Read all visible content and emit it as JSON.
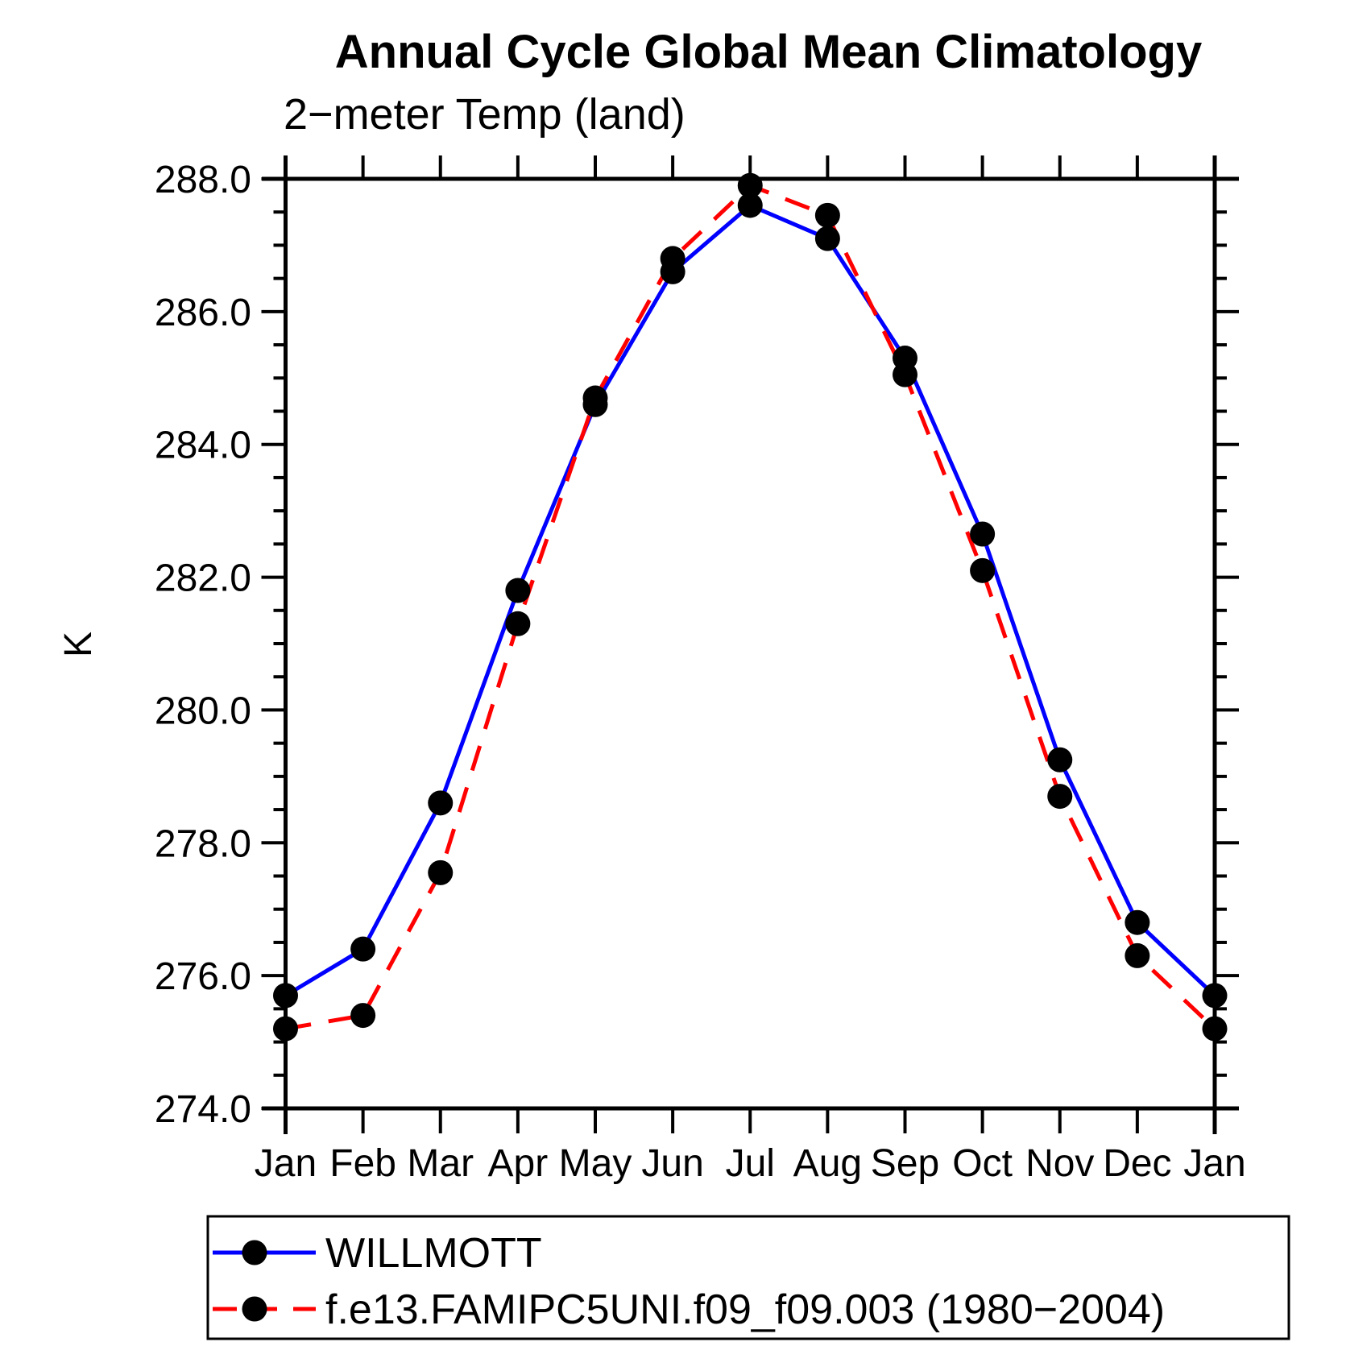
{
  "background": "#ffffff",
  "axis_color": "#000000",
  "marker_color": "#000000",
  "chart_data": {
    "type": "line",
    "title": "Annual Cycle Global Mean Climatology",
    "subtitle": "2−meter Temp (land)",
    "ylabel": "K",
    "xlabel": "",
    "grid": false,
    "legend_position": "bottom",
    "categories": [
      "Jan",
      "Feb",
      "Mar",
      "Apr",
      "May",
      "Jun",
      "Jul",
      "Aug",
      "Sep",
      "Oct",
      "Nov",
      "Dec",
      "Jan"
    ],
    "ylim": [
      274.0,
      288.0
    ],
    "y_major_step": 2.0,
    "y_minor_step": 0.5,
    "y_tick_labels": [
      "274.0",
      "276.0",
      "278.0",
      "280.0",
      "282.0",
      "284.0",
      "286.0",
      "288.0"
    ],
    "series": [
      {
        "name": "WILLMOTT",
        "color": "#0000ff",
        "style": "solid",
        "marker": "black-dot",
        "values": [
          275.7,
          276.4,
          278.6,
          281.8,
          284.6,
          286.6,
          287.6,
          287.1,
          285.3,
          282.65,
          279.25,
          276.8,
          275.7
        ]
      },
      {
        "name": "f.e13.FAMIPC5UNI.f09_f09.003 (1980−2004)",
        "color": "#ff0000",
        "style": "dashed",
        "marker": "black-dot",
        "values": [
          275.2,
          275.4,
          277.55,
          281.3,
          284.7,
          286.8,
          287.9,
          287.45,
          285.05,
          282.1,
          278.7,
          276.3,
          275.2
        ]
      }
    ]
  }
}
